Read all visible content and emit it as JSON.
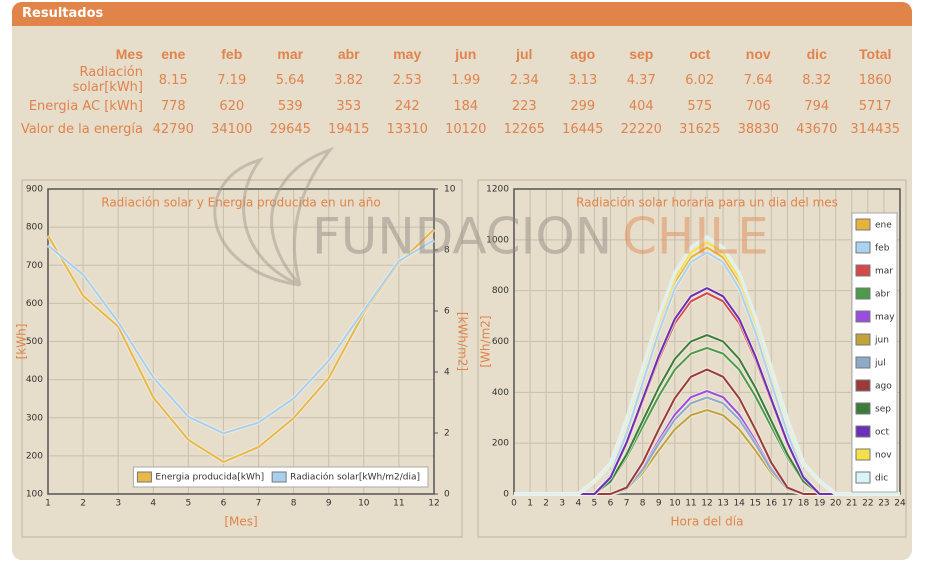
{
  "header": {
    "title": "Resultados"
  },
  "table": {
    "header": [
      "Mes",
      "ene",
      "feb",
      "mar",
      "abr",
      "may",
      "jun",
      "jul",
      "ago",
      "sep",
      "oct",
      "nov",
      "dic",
      "Total"
    ],
    "rows": [
      [
        "Radiación solar[kWh]",
        8.15,
        7.19,
        5.64,
        3.82,
        2.53,
        1.99,
        2.34,
        3.13,
        4.37,
        6.02,
        7.64,
        8.32,
        1860
      ],
      [
        "Energia AC [kWh]",
        778,
        620,
        539,
        353,
        242,
        184,
        223,
        299,
        404,
        575,
        706,
        794,
        5717
      ],
      [
        "Valor de la energía",
        42790,
        34100,
        29645,
        19415,
        13310,
        10120,
        12265,
        16445,
        22220,
        31625,
        38830,
        43670,
        314435
      ]
    ]
  },
  "watermark": [
    "FUNDACION",
    "CHILE"
  ],
  "chart_data": [
    {
      "type": "line",
      "title": "Radiación solar y Energía producida en un año",
      "xlabel": "[Mes]",
      "ylabel": "[kWh]",
      "y2label": "[kWh/m2]",
      "x": [
        1,
        2,
        3,
        4,
        5,
        6,
        7,
        8,
        9,
        10,
        11,
        12
      ],
      "xlim": [
        1,
        12
      ],
      "xticks": [
        1,
        2,
        3,
        4,
        5,
        6,
        7,
        8,
        9,
        10,
        11,
        12
      ],
      "ylim": [
        100,
        900
      ],
      "yticks": [
        100,
        200,
        300,
        400,
        500,
        600,
        700,
        800,
        900
      ],
      "y2lim": [
        0,
        10
      ],
      "y2ticks": [
        0,
        2,
        4,
        6,
        8,
        10
      ],
      "grid": true,
      "legend": "lower right",
      "series": [
        {
          "name": "Energia producida[kWh]",
          "color": "#e8b84a",
          "values": [
            778,
            620,
            539,
            353,
            242,
            184,
            223,
            299,
            404,
            575,
            706,
            794
          ]
        },
        {
          "name": "Radiación solar[kWh/m2/dia]",
          "color": "#a8d0ee",
          "axis": "y2",
          "values": [
            8.15,
            7.19,
            5.64,
            3.82,
            2.53,
            1.99,
            2.34,
            3.13,
            4.37,
            6.02,
            7.64,
            8.32
          ]
        }
      ]
    },
    {
      "type": "line",
      "title": "Radiación solar horaria para un dia del mes",
      "xlabel": "Hora del día",
      "ylabel": "[Wh/m2]",
      "x": [
        0,
        1,
        2,
        3,
        4,
        5,
        6,
        7,
        8,
        9,
        10,
        11,
        12,
        13,
        14,
        15,
        16,
        17,
        18,
        19,
        20,
        21,
        22,
        23,
        24
      ],
      "xlim": [
        0,
        24
      ],
      "xticks": [
        0,
        1,
        2,
        3,
        4,
        5,
        6,
        7,
        8,
        9,
        10,
        11,
        12,
        13,
        14,
        15,
        16,
        17,
        18,
        19,
        20,
        21,
        22,
        23,
        24
      ],
      "ylim": [
        0,
        1200
      ],
      "yticks": [
        0,
        200,
        400,
        600,
        800,
        1000,
        1200
      ],
      "grid": true,
      "legend": "right",
      "series": [
        {
          "name": "ene",
          "color": "#e6b43c",
          "values": [
            0,
            0,
            0,
            0,
            0,
            49,
            116,
            281,
            475,
            669,
            834,
            931,
            970,
            931,
            834,
            669,
            475,
            281,
            116,
            49,
            0,
            0,
            0,
            0,
            0
          ]
        },
        {
          "name": "feb",
          "color": "#a9d3f0",
          "values": [
            0,
            0,
            0,
            0,
            0,
            0,
            76,
            238,
            437,
            637,
            808,
            912,
            950,
            912,
            808,
            637,
            437,
            238,
            76,
            0,
            0,
            0,
            0,
            0,
            0
          ]
        },
        {
          "name": "mar",
          "color": "#d44a4a",
          "values": [
            0,
            0,
            0,
            0,
            0,
            0,
            63,
            198,
            363,
            529,
            672,
            758,
            790,
            758,
            672,
            529,
            363,
            198,
            63,
            0,
            0,
            0,
            0,
            0,
            0
          ]
        },
        {
          "name": "abr",
          "color": "#4c9a4c",
          "values": [
            0,
            0,
            0,
            0,
            0,
            0,
            46,
            144,
            265,
            385,
            489,
            552,
            575,
            552,
            489,
            385,
            265,
            144,
            46,
            0,
            0,
            0,
            0,
            0,
            0
          ]
        },
        {
          "name": "may",
          "color": "#9b4de0",
          "values": [
            0,
            0,
            0,
            0,
            0,
            0,
            0,
            20,
            101,
            211,
            312,
            381,
            405,
            381,
            312,
            211,
            101,
            20,
            0,
            0,
            0,
            0,
            0,
            0,
            0
          ]
        },
        {
          "name": "jun",
          "color": "#c2a23a",
          "values": [
            0,
            0,
            0,
            0,
            0,
            0,
            0,
            17,
            83,
            172,
            254,
            310,
            330,
            310,
            254,
            172,
            83,
            17,
            0,
            0,
            0,
            0,
            0,
            0,
            0
          ]
        },
        {
          "name": "jul",
          "color": "#8fa9c8",
          "values": [
            0,
            0,
            0,
            0,
            0,
            0,
            0,
            19,
            95,
            198,
            293,
            357,
            380,
            357,
            293,
            198,
            95,
            19,
            0,
            0,
            0,
            0,
            0,
            0,
            0
          ]
        },
        {
          "name": "ago",
          "color": "#9c3a3a",
          "values": [
            0,
            0,
            0,
            0,
            0,
            0,
            0,
            25,
            123,
            255,
            377,
            461,
            490,
            461,
            377,
            255,
            123,
            25,
            0,
            0,
            0,
            0,
            0,
            0,
            0
          ]
        },
        {
          "name": "sep",
          "color": "#3a7d3a",
          "values": [
            0,
            0,
            0,
            0,
            0,
            0,
            50,
            156,
            288,
            419,
            531,
            600,
            625,
            600,
            531,
            419,
            288,
            156,
            50,
            0,
            0,
            0,
            0,
            0,
            0
          ]
        },
        {
          "name": "oct",
          "color": "#6b2fb8",
          "values": [
            0,
            0,
            0,
            0,
            0,
            0,
            65,
            203,
            373,
            543,
            689,
            778,
            810,
            778,
            689,
            543,
            373,
            203,
            65,
            0,
            0,
            0,
            0,
            0,
            0
          ]
        },
        {
          "name": "nov",
          "color": "#f5e04a",
          "values": [
            0,
            0,
            0,
            0,
            0,
            50,
            119,
            287,
            485,
            683,
            851,
            950,
            990,
            950,
            851,
            683,
            485,
            287,
            119,
            50,
            0,
            0,
            0,
            0,
            0
          ]
        },
        {
          "name": "dic",
          "color": "#d8f4f8",
          "values": [
            0,
            0,
            0,
            0,
            0,
            51,
            121,
            293,
            495,
            697,
            869,
            970,
            1010,
            970,
            869,
            697,
            495,
            293,
            121,
            51,
            0,
            0,
            0,
            0,
            0
          ]
        }
      ]
    }
  ]
}
